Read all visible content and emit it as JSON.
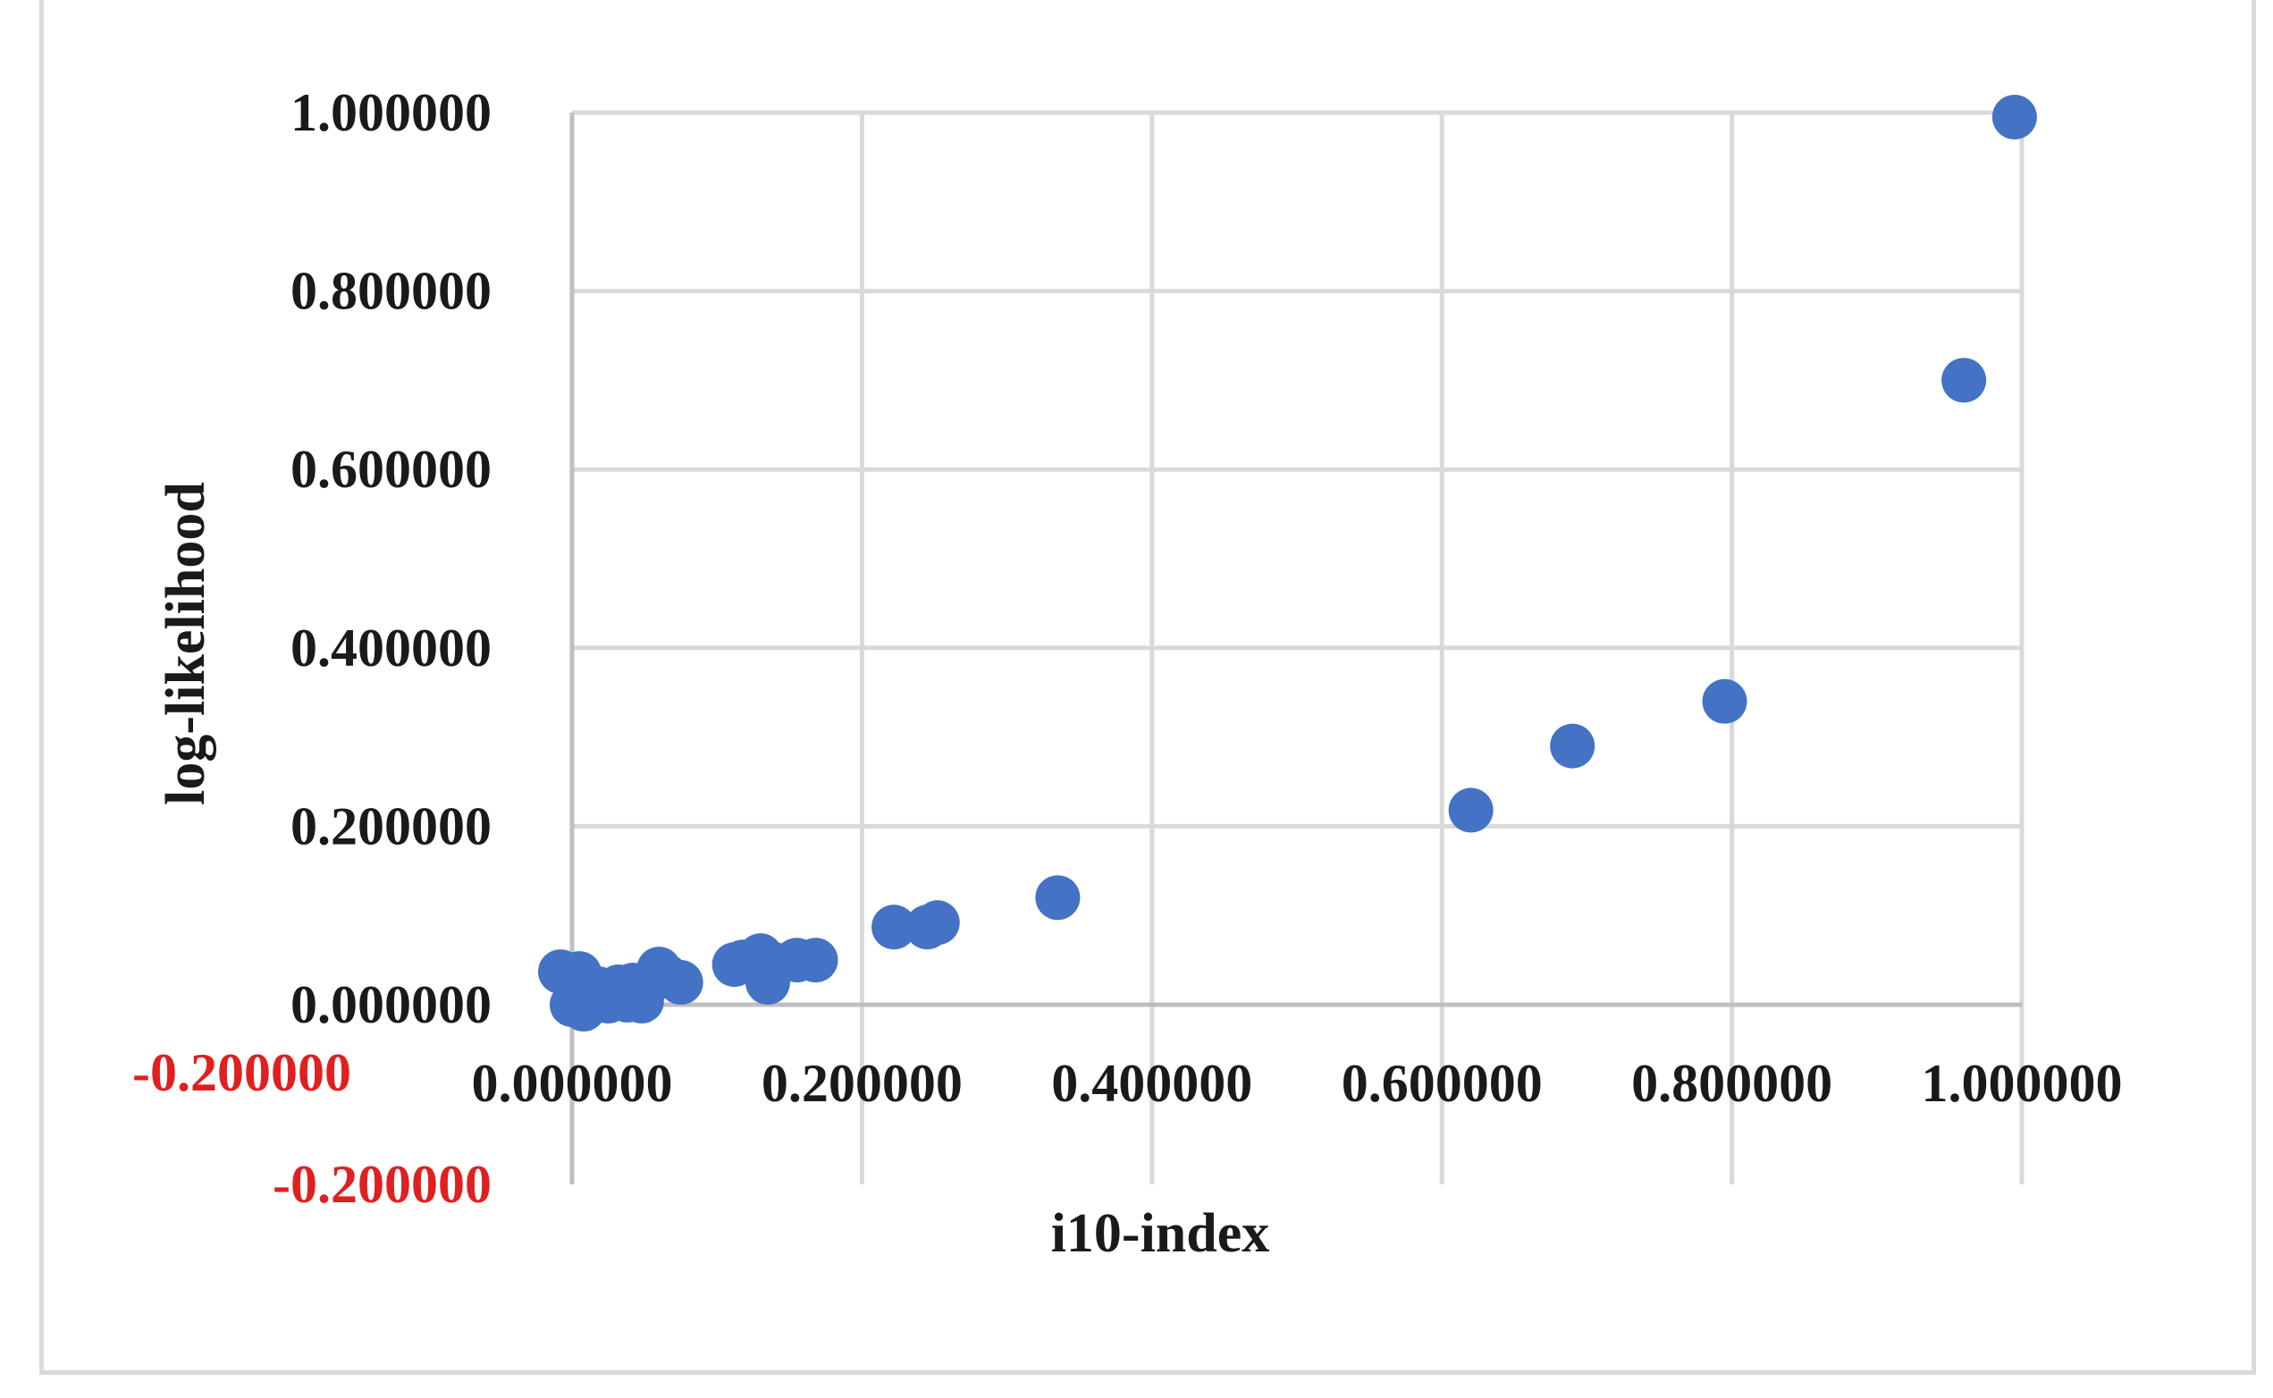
{
  "chart_data": {
    "type": "scatter",
    "xlabel": "i10-index",
    "ylabel": "log-likelihood",
    "xlim": [
      0,
      1
    ],
    "ylim": [
      -0.2,
      1
    ],
    "x_ticks": [
      "0.000000",
      "0.200000",
      "0.400000",
      "0.600000",
      "0.800000",
      "1.000000"
    ],
    "y_ticks": [
      "1.000000",
      "0.800000",
      "0.600000",
      "0.400000",
      "0.200000",
      "0.000000",
      "-0.200000"
    ],
    "extra_label": "-0.200000",
    "grid": true,
    "legend": "none",
    "colors": {
      "marker": "#4472c4",
      "grid": "#d9d9d9",
      "axis": "#bfbfbf",
      "negative_tick": "#e02020"
    },
    "points": [
      {
        "x": 0.0,
        "y": 0.0
      },
      {
        "x": 0.002,
        "y": 0.005
      },
      {
        "x": 0.004,
        "y": 0.012
      },
      {
        "x": 0.006,
        "y": 0.02
      },
      {
        "x": 0.008,
        "y": 0.008
      },
      {
        "x": 0.01,
        "y": 0.015
      },
      {
        "x": 0.012,
        "y": 0.003
      },
      {
        "x": 0.015,
        "y": 0.01
      },
      {
        "x": 0.018,
        "y": 0.018
      },
      {
        "x": 0.02,
        "y": 0.006
      },
      {
        "x": 0.022,
        "y": 0.012
      },
      {
        "x": 0.025,
        "y": 0.004
      },
      {
        "x": 0.028,
        "y": 0.016
      },
      {
        "x": 0.03,
        "y": 0.008
      },
      {
        "x": 0.032,
        "y": 0.02
      },
      {
        "x": 0.035,
        "y": 0.012
      },
      {
        "x": 0.038,
        "y": 0.005
      },
      {
        "x": 0.04,
        "y": 0.015
      },
      {
        "x": 0.042,
        "y": 0.022
      },
      {
        "x": 0.045,
        "y": 0.01
      },
      {
        "x": 0.048,
        "y": 0.004
      },
      {
        "x": 0.05,
        "y": 0.018
      },
      {
        "x": 0.005,
        "y": 0.035
      },
      {
        "x": -0.008,
        "y": 0.037
      },
      {
        "x": 0.008,
        "y": -0.005
      },
      {
        "x": 0.06,
        "y": 0.04
      },
      {
        "x": 0.065,
        "y": 0.032
      },
      {
        "x": 0.075,
        "y": 0.025
      },
      {
        "x": 0.112,
        "y": 0.045
      },
      {
        "x": 0.118,
        "y": 0.048
      },
      {
        "x": 0.13,
        "y": 0.055
      },
      {
        "x": 0.135,
        "y": 0.025
      },
      {
        "x": 0.14,
        "y": 0.045
      },
      {
        "x": 0.155,
        "y": 0.05
      },
      {
        "x": 0.168,
        "y": 0.05
      },
      {
        "x": 0.222,
        "y": 0.087
      },
      {
        "x": 0.245,
        "y": 0.087
      },
      {
        "x": 0.252,
        "y": 0.092
      },
      {
        "x": 0.335,
        "y": 0.12
      },
      {
        "x": 0.62,
        "y": 0.218
      },
      {
        "x": 0.69,
        "y": 0.29
      },
      {
        "x": 0.795,
        "y": 0.34
      },
      {
        "x": 0.96,
        "y": 0.7
      },
      {
        "x": 0.995,
        "y": 0.995
      }
    ]
  }
}
